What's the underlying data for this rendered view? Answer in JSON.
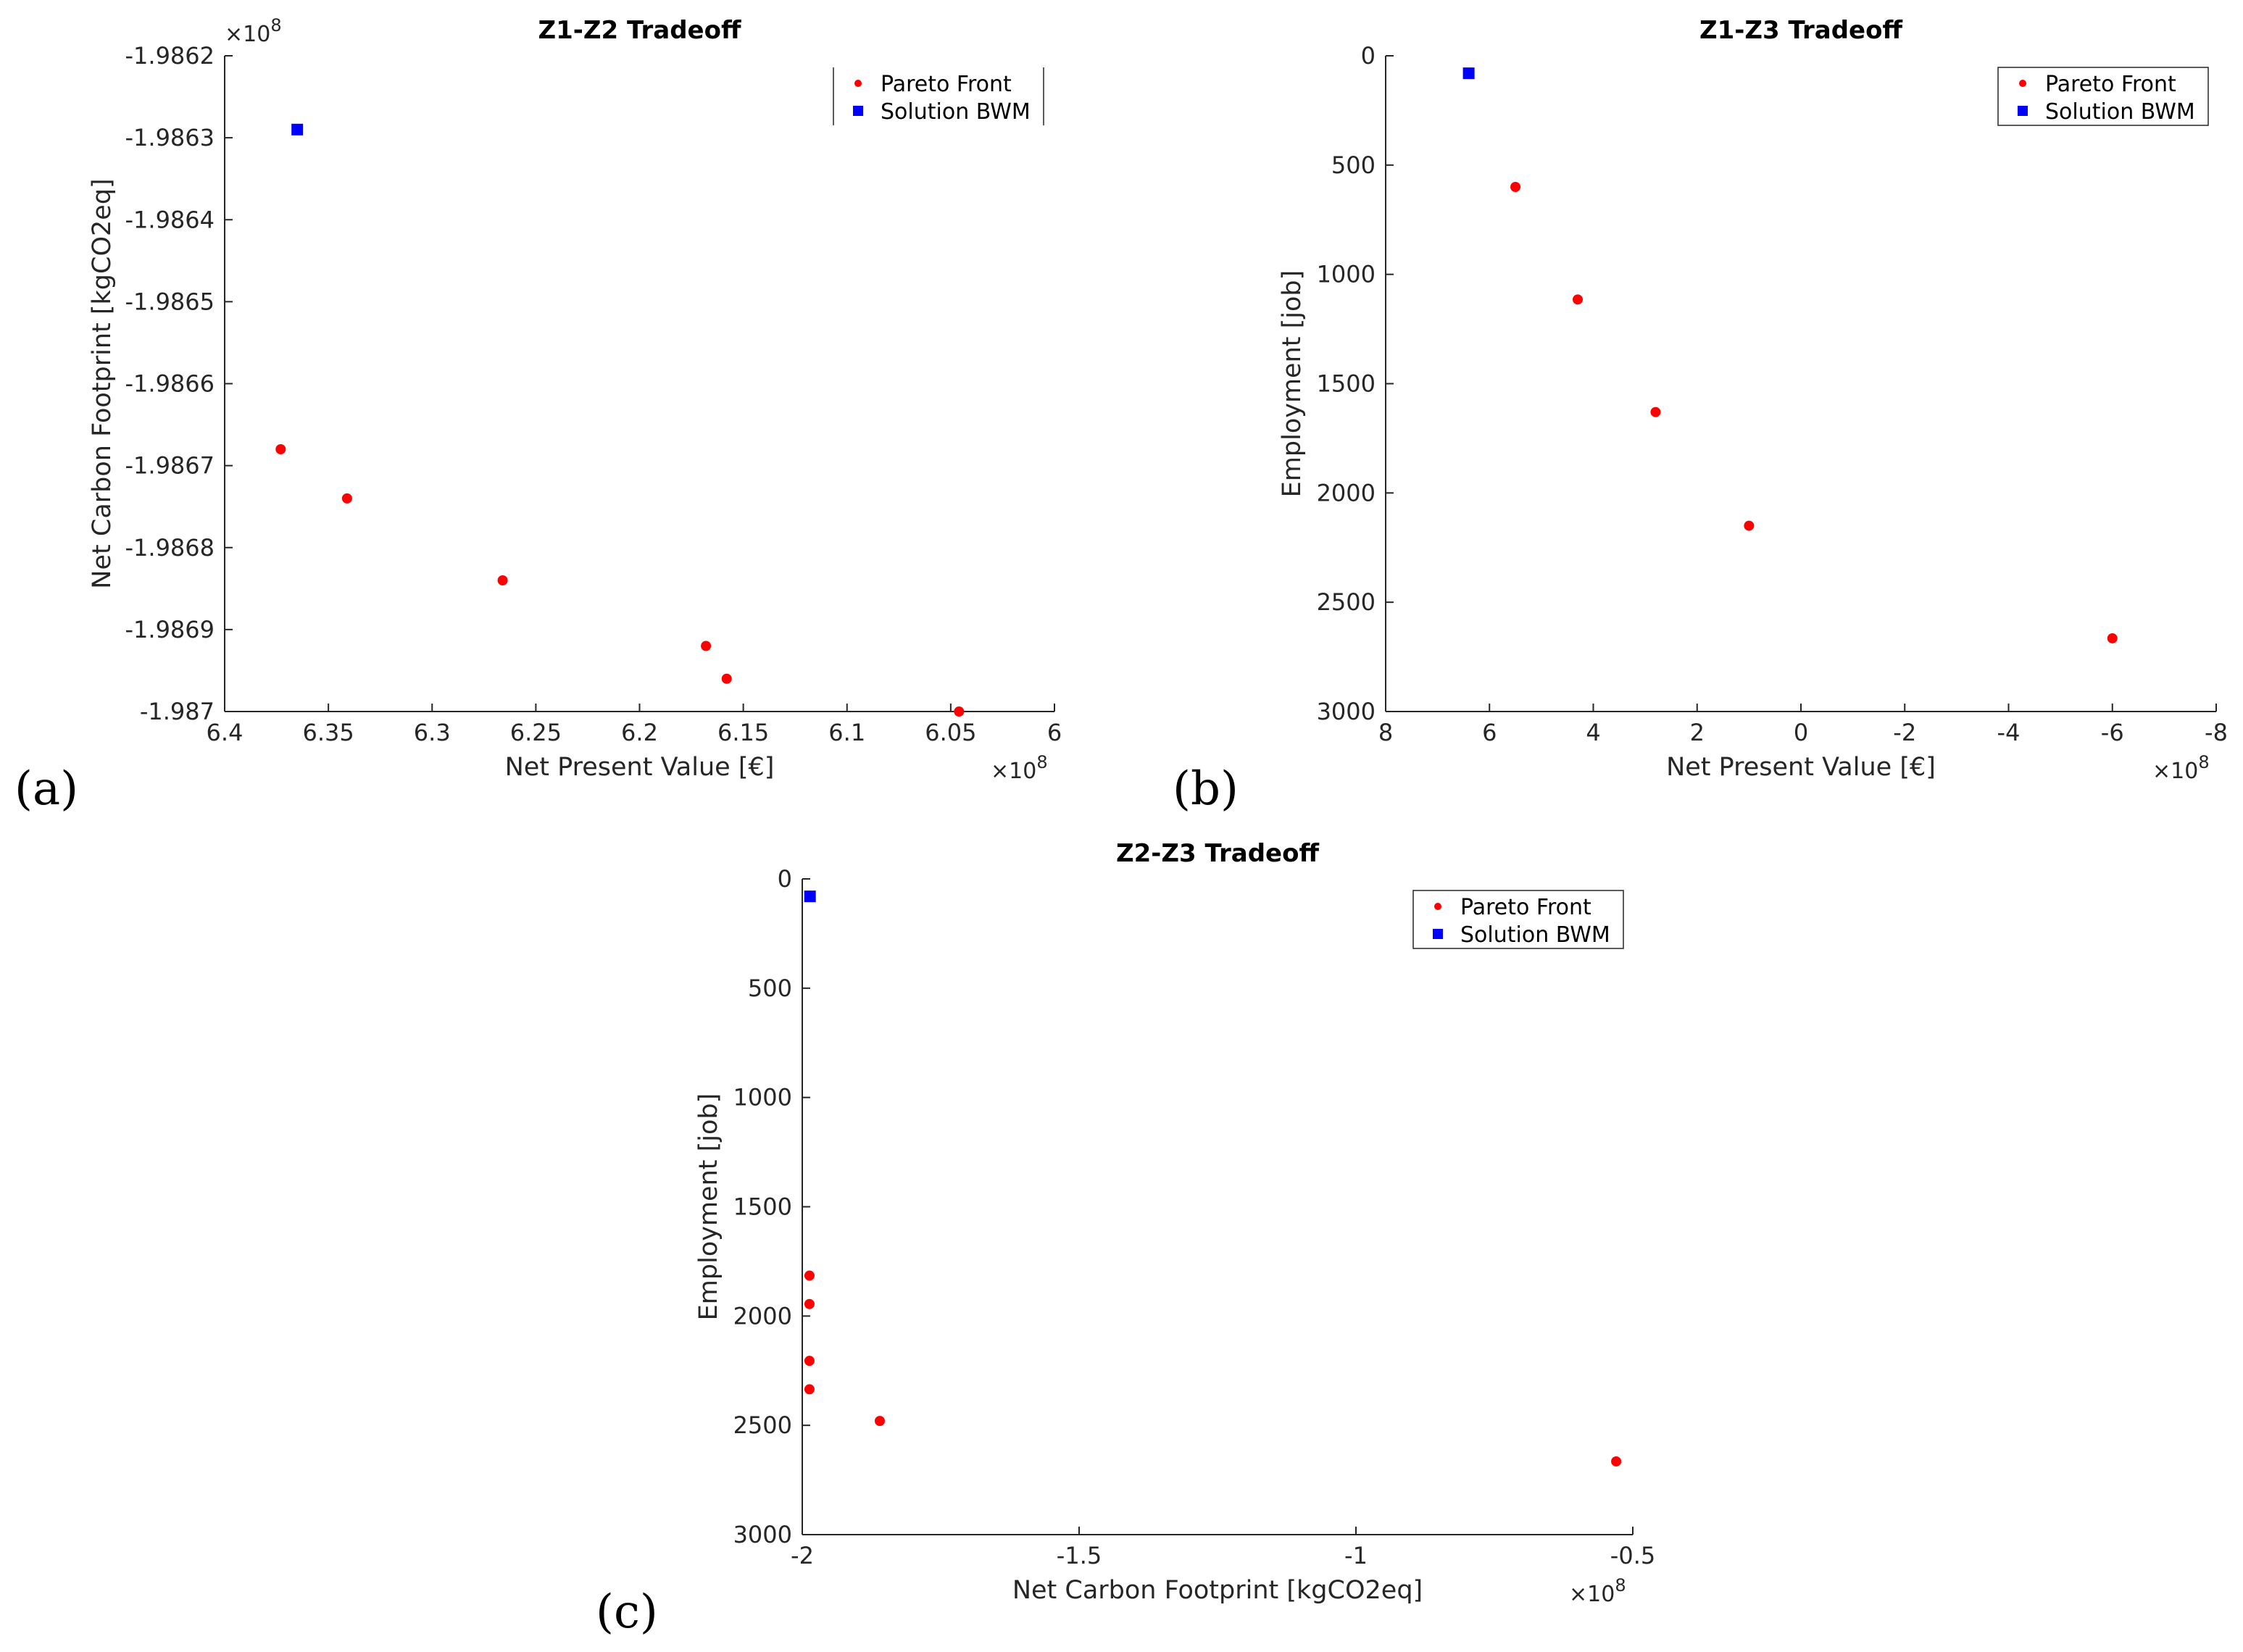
{
  "chart_data": [
    {
      "type": "scatter",
      "panel_label": "(a)",
      "title": "Z1-Z2 Tradeoff",
      "xlabel": "Net Present Value [€]",
      "ylabel": "Net Carbon Footprint [kgCO2eq]",
      "x_multiplier": "×10",
      "x_exponent": "8",
      "y_multiplier": "×10",
      "y_exponent": "8",
      "x_reversed": true,
      "y_reversed": false,
      "xlim": [
        6.0,
        6.4
      ],
      "ylim": [
        -1.987,
        -1.9862
      ],
      "x_ticks": [
        6.4,
        6.35,
        6.3,
        6.25,
        6.2,
        6.15,
        6.1,
        6.05,
        6.0
      ],
      "x_tick_labels": [
        "6.4",
        "6.35",
        "6.3",
        "6.25",
        "6.2",
        "6.15",
        "6.1",
        "6.05",
        "6"
      ],
      "y_ticks": [
        -1.9862,
        -1.9863,
        -1.9864,
        -1.9865,
        -1.9866,
        -1.9867,
        -1.9868,
        -1.9869,
        -1.987
      ],
      "y_tick_labels": [
        "-1.9862",
        "-1.9863",
        "-1.9864",
        "-1.9865",
        "-1.9866",
        "-1.9867",
        "-1.9868",
        "-1.9869",
        "-1.987"
      ],
      "legend_position": "top-right",
      "series": [
        {
          "name": "Pareto Front",
          "marker": "circle",
          "color": "#ff0000",
          "points": [
            [
              6.373,
              -1.98668
            ],
            [
              6.341,
              -1.98674
            ],
            [
              6.266,
              -1.98684
            ],
            [
              6.168,
              -1.98692
            ],
            [
              6.158,
              -1.98696
            ],
            [
              6.046,
              -1.987
            ]
          ]
        },
        {
          "name": "Solution BWM",
          "marker": "square",
          "color": "#0000ff",
          "points": [
            [
              6.365,
              -1.98629
            ]
          ]
        }
      ]
    },
    {
      "type": "scatter",
      "panel_label": "(b)",
      "title": "Z1-Z3 Tradeoff",
      "xlabel": "Net Present Value [€]",
      "ylabel": "Employment [job]",
      "x_multiplier": "×10",
      "x_exponent": "8",
      "x_reversed": true,
      "y_reversed": true,
      "xlim": [
        -8,
        8
      ],
      "ylim": [
        0,
        3000
      ],
      "x_ticks": [
        8,
        6,
        4,
        2,
        0,
        -2,
        -4,
        -6,
        -8
      ],
      "x_tick_labels": [
        "8",
        "6",
        "4",
        "2",
        "0",
        "-2",
        "-4",
        "-6",
        "-8"
      ],
      "y_ticks": [
        0,
        500,
        1000,
        1500,
        2000,
        2500,
        3000
      ],
      "y_tick_labels": [
        "0",
        "500",
        "1000",
        "1500",
        "2000",
        "2500",
        "3000"
      ],
      "legend_position": "top-right",
      "series": [
        {
          "name": "Pareto Front",
          "marker": "circle",
          "color": "#ff0000",
          "points": [
            [
              5.5,
              600
            ],
            [
              4.3,
              1115
            ],
            [
              2.8,
              1630
            ],
            [
              1.0,
              2150
            ],
            [
              -6.0,
              2665
            ]
          ]
        },
        {
          "name": "Solution BWM",
          "marker": "square",
          "color": "#0000ff",
          "points": [
            [
              6.4,
              80
            ]
          ]
        }
      ]
    },
    {
      "type": "scatter",
      "panel_label": "(c)",
      "title": "Z2-Z3 Tradeoff",
      "xlabel": "Net Carbon Footprint [kgCO2eq]",
      "ylabel": "Employment [job]",
      "x_multiplier": "×10",
      "x_exponent": "8",
      "x_reversed": false,
      "y_reversed": true,
      "xlim": [
        -2,
        -0.5
      ],
      "ylim": [
        0,
        3000
      ],
      "x_ticks": [
        -2,
        -1.5,
        -1,
        -0.5
      ],
      "x_tick_labels": [
        "-2",
        "-1.5",
        "-1",
        "-0.5"
      ],
      "y_ticks": [
        0,
        500,
        1000,
        1500,
        2000,
        2500,
        3000
      ],
      "y_tick_labels": [
        "0",
        "500",
        "1000",
        "1500",
        "2000",
        "2500",
        "3000"
      ],
      "legend_position": "top-right",
      "series": [
        {
          "name": "Pareto Front",
          "marker": "circle",
          "color": "#ff0000",
          "points": [
            [
              -1.987,
              1815
            ],
            [
              -1.987,
              1945
            ],
            [
              -1.987,
              2205
            ],
            [
              -1.987,
              2335
            ],
            [
              -1.86,
              2480
            ],
            [
              -0.53,
              2665
            ]
          ]
        },
        {
          "name": "Solution BWM",
          "marker": "square",
          "color": "#0000ff",
          "points": [
            [
              -1.986,
              80
            ]
          ]
        }
      ]
    }
  ]
}
